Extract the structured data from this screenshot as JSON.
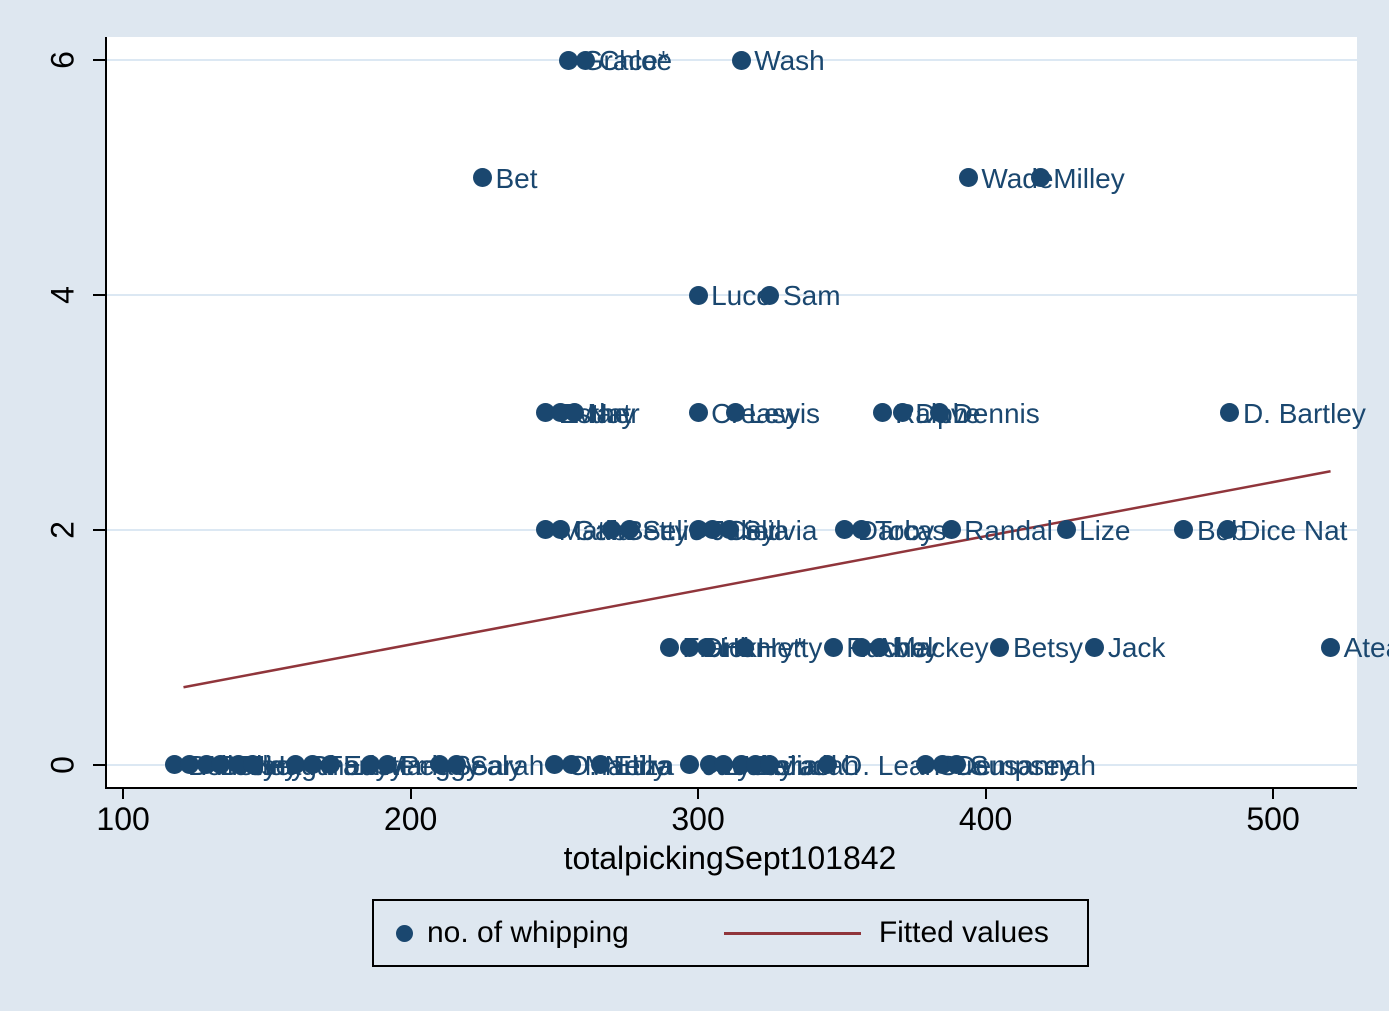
{
  "colors": {
    "page_background": "#dee7f0",
    "plot_background": "#ffffff",
    "gridline": "#dce8f3",
    "marker": "#1a476f",
    "marker_label": "#1a476f",
    "fitted_line": "#90353b",
    "axis_text": "#000000"
  },
  "chart_data": {
    "type": "scatter",
    "title": "",
    "xlabel": "totalpickingSept101842",
    "ylabel": "",
    "xlim": [
      93.7,
      528.5
    ],
    "ylim": [
      -0.19,
      6.2
    ],
    "x_ticks": [
      100,
      200,
      300,
      400,
      500
    ],
    "y_ticks": [
      0,
      2,
      4,
      6
    ],
    "grid": "horizontal gridlines at labeled y ticks",
    "legend_position": "bottom",
    "series": [
      {
        "name": "no. of whipping",
        "marker_color": "#1a476f",
        "points": [
          [
            255,
            6,
            "Grace*"
          ],
          [
            261,
            6,
            "Chloe"
          ],
          [
            315,
            6,
            "Wash"
          ],
          [
            225,
            5,
            "Bet"
          ],
          [
            394,
            5,
            "Wade"
          ],
          [
            419,
            5,
            "Milley"
          ],
          [
            300,
            4,
            "Luce"
          ],
          [
            325,
            4,
            "Sam"
          ],
          [
            247,
            3,
            "Esther"
          ],
          [
            252,
            3,
            "Mary"
          ],
          [
            257,
            3,
            "Nat"
          ],
          [
            300,
            3,
            "Creasy"
          ],
          [
            313,
            3,
            "Lewis"
          ],
          [
            364,
            3,
            "Ralph"
          ],
          [
            371,
            3,
            "Dave"
          ],
          [
            384,
            3,
            "Dennis"
          ],
          [
            485,
            3,
            "D. Bartley"
          ],
          [
            247,
            2,
            "Matila"
          ],
          [
            252,
            2,
            "Gabe"
          ],
          [
            270,
            2,
            "Betty"
          ],
          [
            276,
            2,
            "Selie"
          ],
          [
            300,
            2,
            "Juliet"
          ],
          [
            305,
            2,
            "Celia"
          ],
          [
            311,
            2,
            "Sylvia"
          ],
          [
            351,
            2,
            "Darcas"
          ],
          [
            357,
            2,
            "Toby"
          ],
          [
            388,
            2,
            "Randal"
          ],
          [
            428,
            2,
            "Lize"
          ],
          [
            469,
            2,
            "Bob"
          ],
          [
            484,
            2,
            "Dice Nat"
          ],
          [
            290,
            1,
            "Frank"
          ],
          [
            297,
            1,
            "Dick"
          ],
          [
            303,
            1,
            "Henry*"
          ],
          [
            316,
            1,
            "Hetty"
          ],
          [
            347,
            1,
            "Rachel"
          ],
          [
            357,
            1,
            "Abby"
          ],
          [
            363,
            1,
            "Mackey"
          ],
          [
            405,
            1,
            "Betsy"
          ],
          [
            438,
            1,
            "Jack"
          ],
          [
            520,
            1,
            "Atea"
          ],
          [
            118,
            0,
            "Ben"
          ],
          [
            123,
            0,
            "Ailcey"
          ],
          [
            129,
            0,
            "Betsey"
          ],
          [
            134,
            0,
            "Tilley"
          ],
          [
            140,
            0,
            "Jim"
          ],
          [
            145,
            0,
            "Hagar"
          ],
          [
            160,
            0,
            "Rhody"
          ],
          [
            166,
            0,
            "Fanny"
          ],
          [
            172,
            0,
            "Easter"
          ],
          [
            186,
            0,
            "Maria"
          ],
          [
            192,
            0,
            "Peggy"
          ],
          [
            210,
            0,
            "Sealy"
          ],
          [
            216,
            0,
            "Sarah"
          ],
          [
            250,
            0,
            "O. Nelly"
          ],
          [
            256,
            0,
            "Martha"
          ],
          [
            266,
            0,
            "Eliza"
          ],
          [
            297,
            0,
            "Jacob"
          ],
          [
            304,
            0,
            "Lydia"
          ],
          [
            309,
            0,
            "Amy"
          ],
          [
            315,
            0,
            "Delia"
          ],
          [
            320,
            0,
            "Israel"
          ],
          [
            325,
            0,
            "Judah"
          ],
          [
            345,
            0,
            "O. Lean"
          ],
          [
            379,
            0,
            "Sue"
          ],
          [
            385,
            0,
            "Dempsey"
          ],
          [
            390,
            0,
            "Susannah"
          ]
        ]
      }
    ],
    "fitted_line": {
      "name": "Fitted values",
      "color": "#90353b",
      "x": [
        121,
        520
      ],
      "y": [
        0.66,
        2.5
      ]
    },
    "legend": {
      "series_label": "no. of whipping",
      "fitted_label": "Fitted values"
    }
  }
}
